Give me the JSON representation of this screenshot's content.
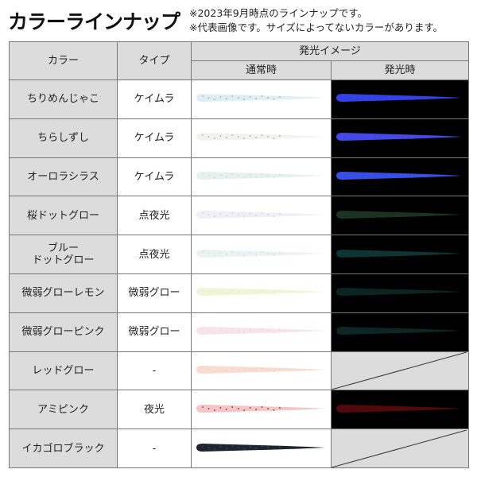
{
  "title": "カラーラインナップ",
  "notes": [
    "※2023年9月時点のラインナップです。",
    "※代表画像です。サイズによってないカラーがあります。"
  ],
  "header": {
    "color": "カラー",
    "type": "タイプ",
    "glow_image": "発光イメージ",
    "normal": "通常時",
    "glowing": "発光時"
  },
  "rows": [
    {
      "color": "ちりめんじゃこ",
      "type": "ケイムラ",
      "normal_color": "#dfeef2",
      "speck": "#7fb0c8",
      "glow_color": "#3a48ff"
    },
    {
      "color": "ちらしずし",
      "type": "ケイムラ",
      "normal_color": "#f2f2f0",
      "speck": "#c0a080",
      "glow_color": "#4a50ff"
    },
    {
      "color": "オーロラシラス",
      "type": "ケイムラ",
      "normal_color": "#e6f0ec",
      "speck": "#c8dcd4",
      "glow_color": "#3c58ff"
    },
    {
      "color": "桜ドットグロー",
      "type": "点夜光",
      "normal_color": "#eef0f6",
      "speck": "#d8c8d8",
      "glow_color": "#1e3a26"
    },
    {
      "color": "ブルー\nドットグロー",
      "type": "点夜光",
      "normal_color": "#eaf2f2",
      "speck": "#c8dcdc",
      "glow_color": "#103a38"
    },
    {
      "color": "微弱グローレモン",
      "type": "微弱グロー",
      "normal_color": "#f2f4d6",
      "speck": "#e8ecc0",
      "glow_color": "#0c2a26"
    },
    {
      "color": "微弱グローピンク",
      "type": "微弱グロー",
      "normal_color": "#f6e4ea",
      "speck": "#f0d0dc",
      "glow_color": "#0c2a28"
    },
    {
      "color": "レッドグロー",
      "type": "-",
      "normal_color": "#f8dcd0",
      "speck": "#f4ccc0",
      "glow_color": null
    },
    {
      "color": "アミピンク",
      "type": "夜光",
      "normal_color": "#f6c4c4",
      "speck": "#6a3030",
      "glow_color": "#5a0a0a"
    },
    {
      "color": "イカゴロブラック",
      "type": "-",
      "normal_color": "#1e2430",
      "speck": "#445060",
      "glow_color": null
    }
  ]
}
